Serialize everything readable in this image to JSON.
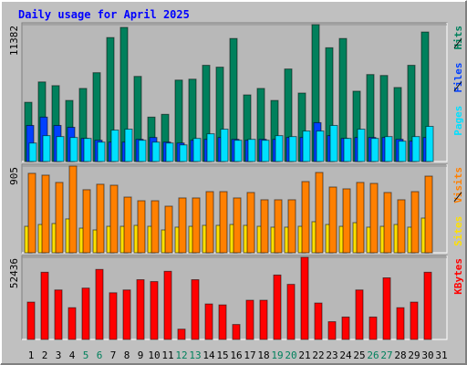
{
  "chart_data": [
    {
      "type": "bar",
      "title": "Daily usage for April 2025",
      "ylim": [
        0,
        11382
      ],
      "yticks": [
        11382
      ],
      "series": [
        {
          "name": "Hits",
          "color": "#00805c",
          "values": [
            4922,
            6614,
            6306,
            5076,
            6075,
            7383,
            10305,
            11151,
            7075,
            3691,
            3922,
            6768,
            6845,
            7998,
            7844,
            10228,
            5537,
            6075,
            5076,
            7690,
            5691,
            11382,
            9459,
            10228,
            5845,
            7229,
            7152,
            6152,
            7998,
            10767,
            null
          ]
        },
        {
          "name": "Files",
          "color": "#0040ff",
          "values": [
            3000,
            3691,
            3000,
            2845,
            1923,
            1769,
            1615,
            1615,
            1846,
            2000,
            1615,
            1538,
            1769,
            1846,
            2000,
            1846,
            1769,
            1846,
            1846,
            2000,
            2000,
            3230,
            2153,
            1923,
            2000,
            2000,
            2000,
            1846,
            1692,
            2000,
            null
          ]
        },
        {
          "name": "Pages",
          "color": "#00e0ff",
          "values": [
            1538,
            2153,
            2076,
            2000,
            1923,
            1615,
            2615,
            2691,
            1769,
            1615,
            1538,
            1384,
            1923,
            2307,
            2691,
            1769,
            1846,
            1769,
            2153,
            2076,
            2538,
            2538,
            3000,
            1923,
            2691,
            1923,
            2076,
            1692,
            2076,
            2922,
            null
          ]
        }
      ]
    },
    {
      "type": "bar",
      "ylim": [
        0,
        905
      ],
      "yticks": [
        905
      ],
      "series": [
        {
          "name": "Visits",
          "color": "#ff8000",
          "values": [
            829,
            810,
            734,
            905,
            658,
            715,
            705,
            581,
            543,
            543,
            486,
            572,
            572,
            638,
            638,
            572,
            629,
            553,
            553,
            553,
            743,
            838,
            686,
            667,
            734,
            724,
            629,
            553,
            638,
            800,
            null
          ]
        },
        {
          "name": "Sites",
          "color": "#ffe000",
          "values": [
            276,
            295,
            305,
            353,
            257,
            238,
            276,
            276,
            286,
            276,
            238,
            267,
            276,
            286,
            286,
            295,
            286,
            276,
            267,
            267,
            276,
            324,
            295,
            276,
            314,
            267,
            276,
            295,
            267,
            362,
            null
          ]
        }
      ]
    },
    {
      "type": "bar",
      "ylim": [
        0,
        52436
      ],
      "yticks": [
        52436
      ],
      "categories": [
        "1",
        "2",
        "3",
        "4",
        "5",
        "6",
        "7",
        "8",
        "9",
        "10",
        "11",
        "12",
        "13",
        "14",
        "15",
        "16",
        "17",
        "18",
        "19",
        "20",
        "21",
        "22",
        "23",
        "24",
        "25",
        "26",
        "27",
        "28",
        "29",
        "30",
        "31"
      ],
      "category_colors": [
        "#000000",
        "#000000",
        "#000000",
        "#000000",
        "#00805c",
        "#00805c",
        "#000000",
        "#000000",
        "#000000",
        "#000000",
        "#000000",
        "#00805c",
        "#00805c",
        "#000000",
        "#000000",
        "#000000",
        "#000000",
        "#000000",
        "#00805c",
        "#00805c",
        "#000000",
        "#000000",
        "#000000",
        "#000000",
        "#000000",
        "#00805c",
        "#00805c",
        "#000000",
        "#000000",
        "#000000",
        "#000000"
      ],
      "series": [
        {
          "name": "KBytes",
          "color": "#ff0000",
          "values": [
            23836,
            42905,
            31583,
            20261,
            32775,
            44693,
            29795,
            31583,
            38138,
            36946,
            43501,
            6555,
            38138,
            22644,
            22048,
            9534,
            25028,
            25028,
            41117,
            35158,
            52436,
            23240,
            11322,
            14302,
            31583,
            14302,
            39329,
            20261,
            23836,
            42905,
            null
          ]
        }
      ]
    }
  ]
}
